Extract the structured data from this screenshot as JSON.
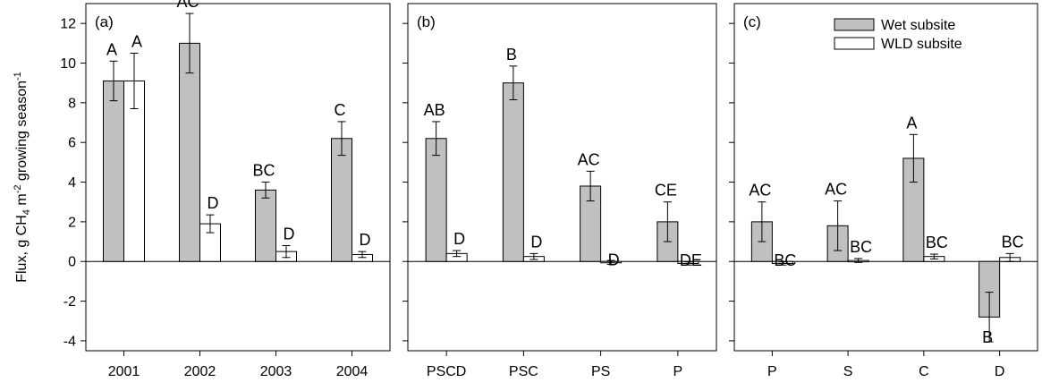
{
  "colors": {
    "wet": "#c0c0c0",
    "wld": "#ffffff",
    "stroke": "#000000"
  },
  "chart_data": {
    "type": "bar",
    "ylabel": "Flux, g CH4 m-2 growing season-1",
    "ylabel_parts": {
      "pre": "Flux, g CH",
      "sub": "4",
      "mid": " m",
      "sup1": "-2",
      "post": " growing season",
      "sup2": "-1"
    },
    "ylim": [
      -4.5,
      13
    ],
    "yticks": [
      -4,
      -2,
      0,
      2,
      4,
      6,
      8,
      10,
      12
    ],
    "legend": {
      "placement": "top-right",
      "panel": 2,
      "entries": [
        "Wet subsite",
        "WLD subsite"
      ]
    },
    "panels": [
      {
        "label": "(a)",
        "categories": [
          "2001",
          "2002",
          "2003",
          "2004"
        ],
        "series": [
          {
            "name": "Wet subsite",
            "values": [
              9.1,
              11.0,
              3.6,
              6.2
            ],
            "errors": [
              1.0,
              1.5,
              0.4,
              0.85
            ],
            "letters": [
              "A",
              "AC",
              "BC",
              "C"
            ]
          },
          {
            "name": "WLD subsite",
            "values": [
              9.1,
              1.9,
              0.5,
              0.35
            ],
            "errors": [
              1.4,
              0.45,
              0.3,
              0.15
            ],
            "letters": [
              "A",
              "D",
              "D",
              "D"
            ]
          }
        ]
      },
      {
        "label": "(b)",
        "categories": [
          "PSCD",
          "PSC",
          "PS",
          "P"
        ],
        "series": [
          {
            "name": "Wet subsite",
            "values": [
              6.2,
              9.0,
              3.8,
              2.0
            ],
            "errors": [
              0.85,
              0.85,
              0.75,
              1.0
            ],
            "letters": [
              "AB",
              "B",
              "AC",
              "CE"
            ]
          },
          {
            "name": "WLD subsite",
            "values": [
              0.4,
              0.25,
              -0.05,
              -0.1
            ],
            "errors": [
              0.15,
              0.15,
              0.1,
              0.08
            ],
            "letters": [
              "D",
              "D",
              "D",
              "DE"
            ]
          }
        ]
      },
      {
        "label": "(c)",
        "categories": [
          "P",
          "S",
          "C",
          "D"
        ],
        "series": [
          {
            "name": "Wet subsite",
            "values": [
              2.0,
              1.8,
              5.2,
              -2.8
            ],
            "errors": [
              1.0,
              1.25,
              1.2,
              1.25
            ],
            "letters": [
              "AC",
              "AC",
              "A",
              "B"
            ]
          },
          {
            "name": "WLD subsite",
            "values": [
              -0.1,
              0.05,
              0.25,
              0.2
            ],
            "errors": [
              0.08,
              0.1,
              0.12,
              0.2
            ],
            "letters": [
              "BC",
              "BC",
              "BC",
              "BC"
            ]
          }
        ]
      }
    ]
  }
}
